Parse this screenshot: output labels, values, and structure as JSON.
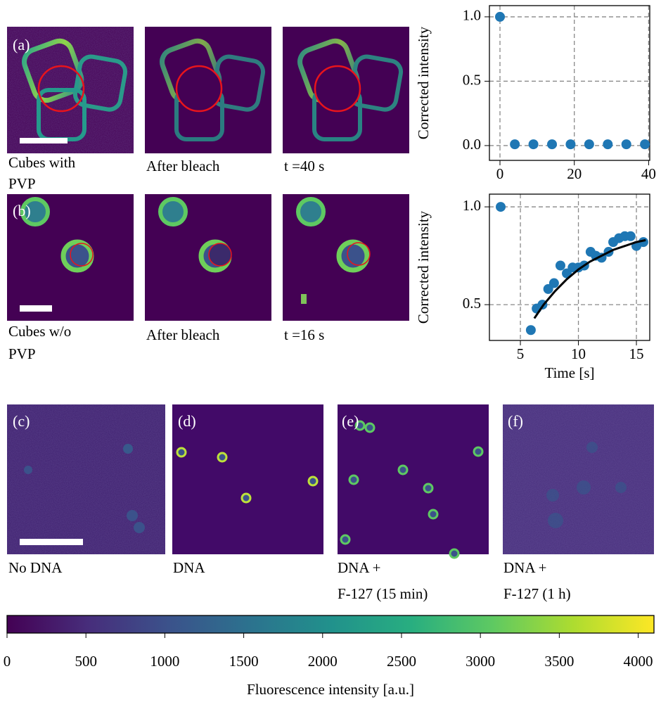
{
  "panels": [
    {
      "label": "(a)",
      "caption": [
        "Cubes with",
        "PVP"
      ]
    },
    {
      "caption": [
        "After bleach"
      ]
    },
    {
      "caption": [
        "t =40 s"
      ]
    },
    {
      "label": "(b)",
      "caption": [
        "Cubes w/o",
        "PVP"
      ]
    },
    {
      "caption": [
        "After bleach"
      ]
    },
    {
      "caption": [
        "t =16 s"
      ]
    },
    {
      "label": "(c)",
      "caption": [
        "No DNA"
      ]
    },
    {
      "label": "(d)",
      "caption": [
        "DNA"
      ]
    },
    {
      "label": "(e)",
      "caption": [
        "DNA +",
        "F-127 (15 min)"
      ]
    },
    {
      "label": "(f)",
      "caption": [
        "DNA +",
        "F-127 (1 h)"
      ]
    }
  ],
  "chart_data": [
    {
      "type": "scatter",
      "ylabel": "Corrected intensity",
      "xlim": [
        -2.84,
        40.3
      ],
      "ylim": [
        -0.115,
        1.087
      ],
      "xticks": [
        0,
        20,
        40
      ],
      "yticks": [
        {
          "value": 0,
          "label": "0.0"
        },
        {
          "value": 0.5,
          "label": "0.5"
        },
        {
          "value": 1,
          "label": "1.0"
        }
      ],
      "grid": true,
      "series": [
        {
          "color": "#1f77b4",
          "mode": "points",
          "x": [
            0,
            4,
            9,
            14,
            19,
            24,
            29,
            34,
            39
          ],
          "values": [
            1.0,
            0.01,
            0.01,
            0.01,
            0.01,
            0.01,
            0.01,
            0.01,
            0.01
          ]
        }
      ]
    },
    {
      "type": "scatter",
      "ylabel": "Corrected intensity",
      "xlabel": "Time [s]",
      "xlim": [
        2.33,
        16.15
      ],
      "ylim": [
        0.317,
        1.065
      ],
      "xticks": [
        5,
        10,
        15
      ],
      "yticks": [
        {
          "value": 0.5,
          "label": "0.5"
        },
        {
          "value": 1,
          "label": "1.0"
        }
      ],
      "grid": true,
      "series": [
        {
          "color": "#1f77b4",
          "mode": "points",
          "x": [
            3.3,
            5.9,
            6.4,
            6.9,
            7.4,
            7.9,
            8.45,
            9.0,
            9.5,
            10.0,
            10.5,
            11.05,
            11.5,
            12.0,
            12.6,
            13.0,
            13.5,
            14.0,
            14.5,
            15.0,
            15.6
          ],
          "values": [
            1.0,
            0.37,
            0.48,
            0.5,
            0.58,
            0.61,
            0.7,
            0.66,
            0.69,
            0.69,
            0.7,
            0.77,
            0.75,
            0.74,
            0.77,
            0.82,
            0.84,
            0.85,
            0.85,
            0.8,
            0.82
          ]
        },
        {
          "color": "#000000",
          "mode": "line",
          "x": [
            6.2,
            7,
            8,
            9,
            10,
            11,
            12,
            13,
            14,
            15,
            15.8
          ],
          "values": [
            0.43,
            0.5,
            0.57,
            0.63,
            0.68,
            0.72,
            0.75,
            0.78,
            0.8,
            0.82,
            0.83
          ]
        }
      ]
    },
    {
      "type": "colorbar",
      "xlabel": "Fluorescence intensity [a.u.]",
      "xlim": [
        0,
        4100
      ],
      "xticks": [
        0,
        500,
        1000,
        1500,
        2000,
        2500,
        3000,
        3500,
        4000
      ],
      "colors": [
        "#440154",
        "#472d7b",
        "#3b528b",
        "#2c728e",
        "#21918c",
        "#28ae80",
        "#5ec962",
        "#addc30",
        "#fde725"
      ]
    }
  ]
}
